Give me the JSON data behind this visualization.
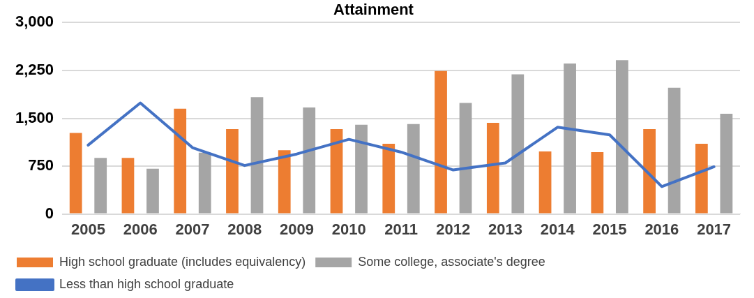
{
  "chart_data": {
    "type": "bar",
    "title": "Attainment",
    "categories": [
      "2005",
      "2006",
      "2007",
      "2008",
      "2009",
      "2010",
      "2011",
      "2012",
      "2013",
      "2014",
      "2015",
      "2016",
      "2017"
    ],
    "series": [
      {
        "name": "High school graduate (includes equivalency)",
        "color": "#ed7d31",
        "values": [
          1270,
          880,
          1650,
          1330,
          1000,
          1330,
          1100,
          2240,
          1430,
          980,
          970,
          1330,
          1100
        ]
      },
      {
        "name": "Some college, associate's degree",
        "color": "#a5a5a5",
        "values": [
          880,
          710,
          960,
          1830,
          1670,
          1400,
          1410,
          1740,
          2190,
          2360,
          2410,
          1980,
          1570
        ]
      },
      {
        "name": "Less than high school graduate",
        "type": "line",
        "color": "#4472c4",
        "values": [
          1080,
          1740,
          1040,
          760,
          940,
          1170,
          970,
          690,
          800,
          1360,
          1240,
          430,
          740
        ]
      }
    ],
    "ylim": [
      0,
      3000
    ],
    "yticks": [
      0,
      {
        "value": 750,
        "label": "750"
      },
      {
        "value": 1500,
        "label": "1,500"
      },
      {
        "value": 2250,
        "label": "2,250"
      },
      {
        "value": 3000,
        "label": "3,000"
      }
    ],
    "grid": "y",
    "legend": "bottom",
    "marker": "none"
  }
}
